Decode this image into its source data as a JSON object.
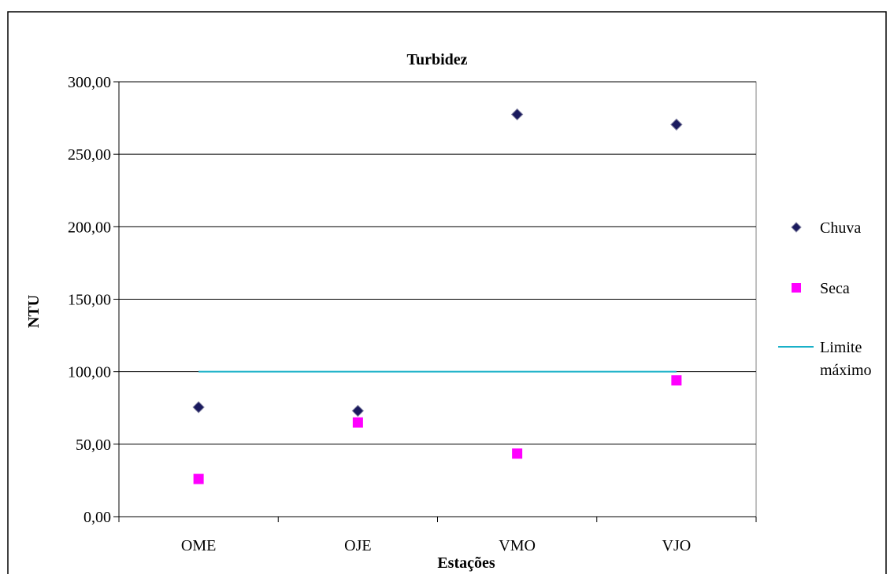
{
  "chart_data": {
    "type": "scatter",
    "title": "Turbidez",
    "xlabel": "Estações",
    "ylabel": "NTU",
    "categories": [
      "OME",
      "OJE",
      "VMO",
      "VJO"
    ],
    "ylim": [
      0,
      300
    ],
    "yticks": [
      0,
      50,
      100,
      150,
      200,
      250,
      300
    ],
    "ytick_labels": [
      "0,00",
      "50,00",
      "100,00",
      "150,00",
      "200,00",
      "250,00",
      "300,00"
    ],
    "grid": "horizontal",
    "legend_position": "right",
    "series": [
      {
        "name": "Chuva",
        "marker": "diamond",
        "color": "#1a1a5e",
        "values": [
          75.5,
          73,
          277.5,
          270.5
        ]
      },
      {
        "name": "Seca",
        "marker": "square",
        "color": "#ff00ff",
        "values": [
          26,
          65,
          43.5,
          94
        ]
      },
      {
        "name_lines": [
          "Limite",
          "máximo"
        ],
        "marker": "line",
        "color": "#19b0c8",
        "values": [
          100,
          100,
          100,
          100
        ]
      }
    ]
  }
}
